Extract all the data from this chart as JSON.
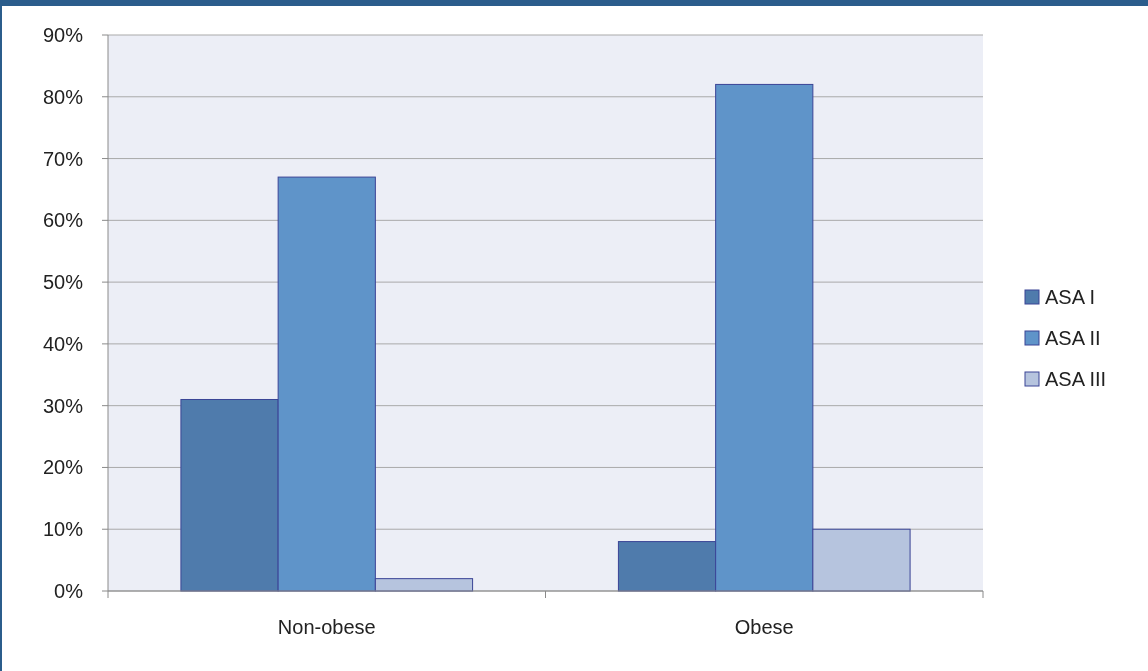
{
  "chart_data": {
    "type": "bar",
    "categories": [
      "Non-obese",
      "Obese"
    ],
    "series": [
      {
        "name": "ASA I",
        "color": "#4f7bac",
        "values": [
          31,
          8
        ]
      },
      {
        "name": "ASA II",
        "color": "#5f94c9",
        "values": [
          67,
          82
        ]
      },
      {
        "name": "ASA III",
        "color": "#b6c4de",
        "values": [
          2,
          10
        ]
      }
    ],
    "ylim": [
      0,
      90
    ],
    "yticks": [
      {
        "value": 0,
        "label": "0%"
      },
      {
        "value": 10,
        "label": "10%"
      },
      {
        "value": 20,
        "label": "20%"
      },
      {
        "value": 30,
        "label": "30%"
      },
      {
        "value": 40,
        "label": "40%"
      },
      {
        "value": 50,
        "label": "50%"
      },
      {
        "value": 60,
        "label": "60%"
      },
      {
        "value": 70,
        "label": "70%"
      },
      {
        "value": 80,
        "label": "80%"
      },
      {
        "value": 90,
        "label": "90%"
      }
    ],
    "grid": "y",
    "legend": "right"
  }
}
